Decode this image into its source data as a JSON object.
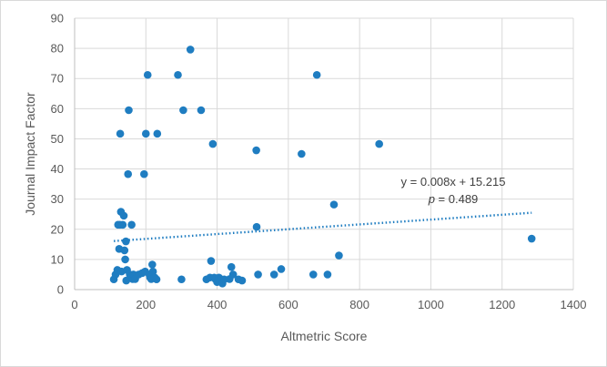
{
  "chart_data": {
    "type": "scatter",
    "title": "",
    "xlabel": "Altmetric Score",
    "ylabel": "Journal Impact Factor",
    "xlim": [
      0,
      1400
    ],
    "ylim": [
      0,
      90
    ],
    "x_ticks": [
      0,
      200,
      400,
      600,
      800,
      1000,
      1200,
      1400
    ],
    "y_ticks": [
      0,
      10,
      20,
      30,
      40,
      50,
      60,
      70,
      80,
      90
    ],
    "x_tick_labels": [
      "0",
      "200",
      "400",
      "600",
      "800",
      "1000",
      "1200",
      "1400"
    ],
    "y_tick_labels": [
      "0",
      "10",
      "20",
      "30",
      "40",
      "50",
      "60",
      "70",
      "80",
      "90"
    ],
    "grid": true,
    "point_color": "#1F7DC1",
    "trendline_color": "#1F7DC1",
    "points": [
      [
        110,
        3.4
      ],
      [
        115,
        5
      ],
      [
        120,
        6.5
      ],
      [
        122,
        21.5
      ],
      [
        125,
        13.5
      ],
      [
        127,
        21.5
      ],
      [
        128,
        51.7
      ],
      [
        130,
        25.8
      ],
      [
        132,
        6
      ],
      [
        135,
        21.5
      ],
      [
        138,
        24.5
      ],
      [
        140,
        13
      ],
      [
        142,
        10
      ],
      [
        144,
        16
      ],
      [
        145,
        3
      ],
      [
        147,
        6.5
      ],
      [
        150,
        38.3
      ],
      [
        152,
        59.5
      ],
      [
        155,
        5
      ],
      [
        158,
        4
      ],
      [
        160,
        21.5
      ],
      [
        163,
        3.5
      ],
      [
        165,
        5
      ],
      [
        170,
        3.5
      ],
      [
        180,
        5
      ],
      [
        190,
        5.5
      ],
      [
        195,
        38.3
      ],
      [
        198,
        6
      ],
      [
        200,
        51.7
      ],
      [
        205,
        71.2
      ],
      [
        210,
        5
      ],
      [
        212,
        4
      ],
      [
        215,
        3.5
      ],
      [
        218,
        8.3
      ],
      [
        220,
        6
      ],
      [
        225,
        4
      ],
      [
        230,
        3.4
      ],
      [
        232,
        51.7
      ],
      [
        290,
        71.2
      ],
      [
        300,
        3.4
      ],
      [
        305,
        59.5
      ],
      [
        325,
        79.6
      ],
      [
        355,
        59.5
      ],
      [
        370,
        3.4
      ],
      [
        380,
        4
      ],
      [
        383,
        9.5
      ],
      [
        388,
        48.3
      ],
      [
        392,
        4
      ],
      [
        395,
        3.5
      ],
      [
        400,
        2.5
      ],
      [
        405,
        4
      ],
      [
        410,
        3.5
      ],
      [
        415,
        2
      ],
      [
        420,
        3.4
      ],
      [
        435,
        3.5
      ],
      [
        440,
        7.5
      ],
      [
        445,
        5
      ],
      [
        460,
        3.4
      ],
      [
        470,
        3
      ],
      [
        510,
        46.2
      ],
      [
        511,
        20.8
      ],
      [
        515,
        5
      ],
      [
        560,
        5
      ],
      [
        580,
        6.8
      ],
      [
        637,
        45
      ],
      [
        670,
        5
      ],
      [
        680,
        71.2
      ],
      [
        710,
        5
      ],
      [
        728,
        28.2
      ],
      [
        742,
        11.3
      ],
      [
        855,
        48.3
      ],
      [
        1283,
        16.9
      ]
    ],
    "trendline": {
      "slope": 0.008,
      "intercept": 15.215,
      "x_range": [
        110,
        1283
      ],
      "style": "dotted"
    },
    "annotations": {
      "equation": "y = 0.008x + 15.215",
      "p_value_label": "p",
      "p_value_text": "= 0.489"
    }
  }
}
